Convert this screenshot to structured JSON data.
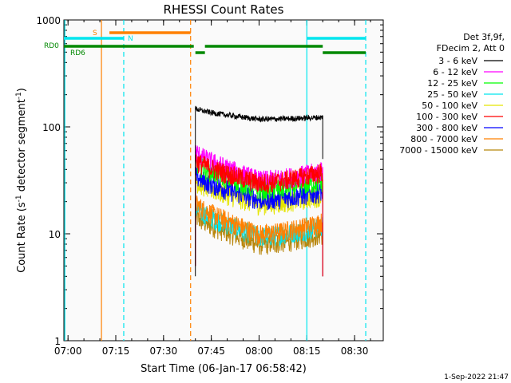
{
  "chart_data": {
    "type": "line",
    "title": "RHESSI Count Rates",
    "xlabel": "Start Time (06-Jan-17 06:58:42)",
    "ylabel": "Count Rate (s",
    "ylabel_sup1": "-1",
    "ylabel_mid": " detector segment",
    "ylabel_sup2": "-1",
    "ylabel_end": ")",
    "yscale": "log",
    "xlim": [
      "06:58:42",
      "08:39:00"
    ],
    "ylim": [
      1,
      1000
    ],
    "x_ticks": [
      "07:00",
      "07:15",
      "07:30",
      "07:45",
      "08:00",
      "08:15",
      "08:30"
    ],
    "y_ticks": [
      "1",
      "10",
      "100",
      "1000"
    ],
    "legend_header": [
      "Det 3f,9f,",
      "FDecim 2, Att 0"
    ],
    "legend_position": "right",
    "timestamp": "1-Sep-2022 21:47",
    "flags": [
      {
        "label": "S",
        "color": "#ff8000",
        "segments": [
          [
            "07:13:00",
            "07:38:30"
          ]
        ]
      },
      {
        "label": "N",
        "color": "#00e5ee",
        "segments": [
          [
            "06:58:42",
            "07:17:30"
          ],
          [
            "08:15:00",
            "08:33:30"
          ]
        ]
      },
      {
        "label": "RD0",
        "color": "#008800",
        "segments": [
          [
            "06:58:42",
            "07:39:30"
          ],
          [
            "07:43:00",
            "08:20:00"
          ]
        ]
      },
      {
        "label": "RD6",
        "color": "#008800",
        "segments": [
          [
            "07:40:00",
            "07:43:00"
          ],
          [
            "08:20:00",
            "08:33:30"
          ]
        ]
      }
    ],
    "vertical_lines": [
      {
        "time": "06:59:00",
        "color": "#00e5ee",
        "style": "solid"
      },
      {
        "time": "07:10:30",
        "color": "#ff8000",
        "style": "solid"
      },
      {
        "time": "07:17:30",
        "color": "#00e5ee",
        "style": "dashed"
      },
      {
        "time": "07:38:30",
        "color": "#ff8000",
        "style": "dashed"
      },
      {
        "time": "08:15:00",
        "color": "#00e5ee",
        "style": "solid"
      },
      {
        "time": "08:33:30",
        "color": "#00e5ee",
        "style": "dashed"
      }
    ],
    "data_interval": [
      "07:40:00",
      "08:20:00"
    ],
    "series": [
      {
        "name": "3 - 6 keV",
        "color": "#000000",
        "values_start": 150,
        "values_mid": 118,
        "values_end": 123
      },
      {
        "name": "6 - 12 keV",
        "color": "#ff00ff",
        "values_start": 60,
        "values_mid": 32,
        "values_end": 39
      },
      {
        "name": "12 - 25 keV",
        "color": "#00ff00",
        "values_start": 48,
        "values_mid": 26,
        "values_end": 31
      },
      {
        "name": "25 - 50 keV",
        "color": "#00e5ee",
        "values_start": 18,
        "values_mid": 9.5,
        "values_end": 12
      },
      {
        "name": "50 - 100 keV",
        "color": "#e5e500",
        "values_start": 32,
        "values_mid": 19,
        "values_end": 23
      },
      {
        "name": "100 - 300 keV",
        "color": "#ff0000",
        "values_start": 50,
        "values_mid": 30,
        "values_end": 38
      },
      {
        "name": "300 - 800 keV",
        "color": "#0000ff",
        "values_start": 36,
        "values_mid": 21,
        "values_end": 25
      },
      {
        "name": "800 - 7000 keV",
        "color": "#ff8000",
        "values_start": 20,
        "values_mid": 10,
        "values_end": 13
      },
      {
        "name": "7000 - 15000 keV",
        "color": "#b8860b",
        "values_start": 15,
        "values_mid": 8,
        "values_end": 10
      }
    ]
  }
}
